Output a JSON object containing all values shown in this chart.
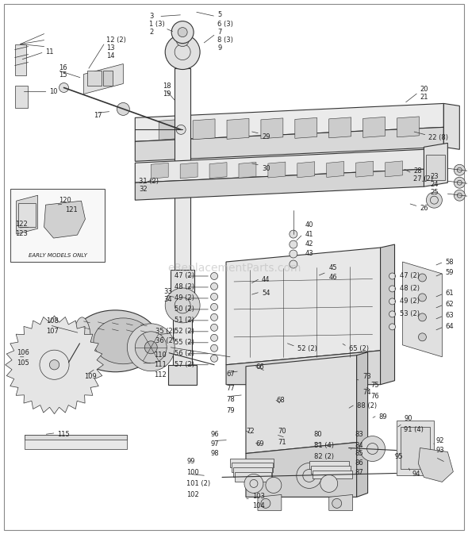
{
  "bg_color": "#ffffff",
  "line_color": "#333333",
  "label_color": "#222222",
  "figsize": [
    5.9,
    6.73
  ],
  "dpi": 100,
  "watermark": "eReplacementParts.com",
  "watermark_color": "#bbbbbb"
}
